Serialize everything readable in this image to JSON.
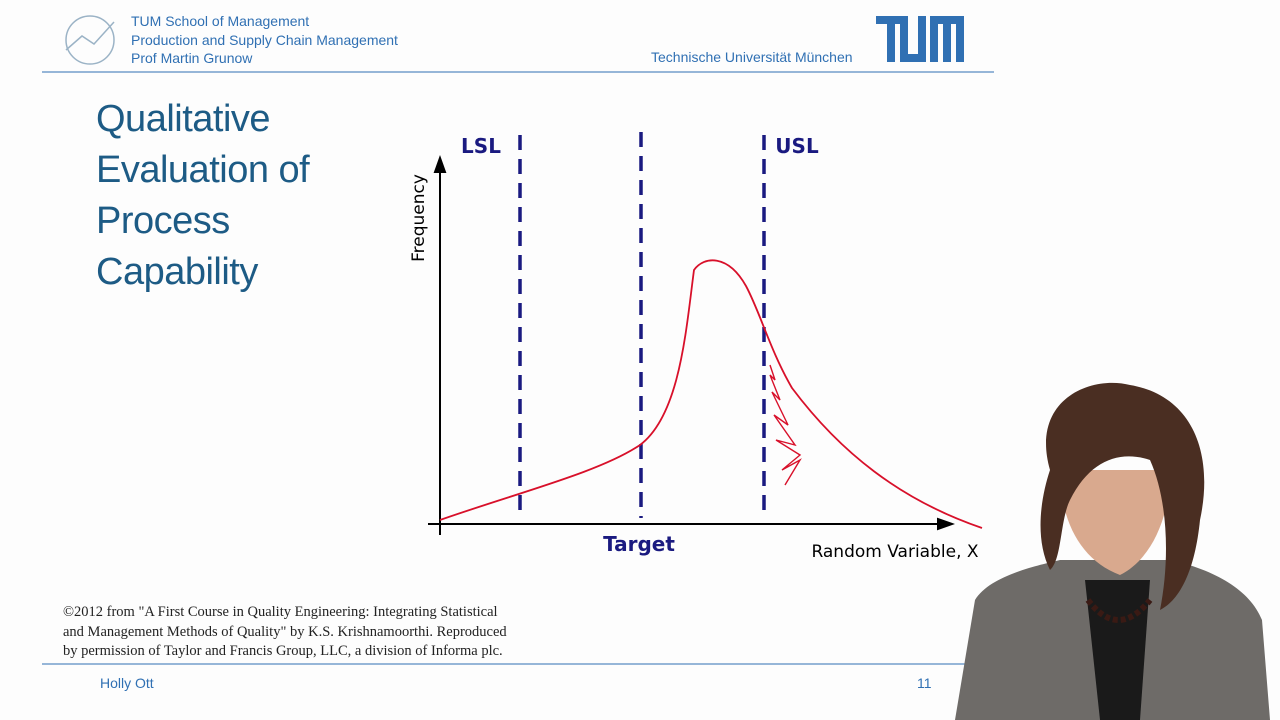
{
  "header": {
    "institution_lines": [
      "TUM School of Management",
      "Production and Supply Chain Management",
      "Prof Martin Grunow"
    ],
    "university": "Technische Universität München"
  },
  "slide": {
    "title_lines": [
      "Qualitative",
      "Evaluation of",
      "Process",
      "Capability"
    ],
    "diagram": {
      "y_axis_label": "Frequency",
      "x_axis_label": "Random Variable, X",
      "lower_limit": "LSL",
      "upper_limit": "USL",
      "center": "Target"
    },
    "citation_lines": [
      "©2012 from \"A First Course in Quality Engineering: Integrating Statistical",
      "and Management Methods of Quality\" by K.S. Krishnamoorthi. Reproduced",
      "by permission of Taylor and Francis Group, LLC, a division of Informa plc."
    ]
  },
  "footer": {
    "presenter": "Holly Ott",
    "page": "11"
  }
}
